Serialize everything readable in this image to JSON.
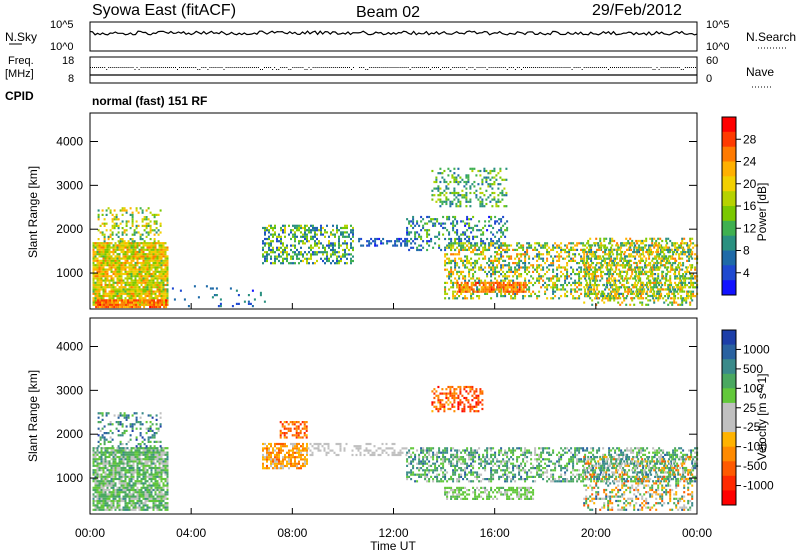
{
  "header": {
    "title": "Syowa East (fitACF)",
    "beam": "Beam 02",
    "date": "29/Feb/2012"
  },
  "strips": {
    "nsky_label": "N.Sky",
    "nsky_ticks": [
      "10^5",
      "10^0"
    ],
    "nsearch_label": "N.Search",
    "nsearch_ticks": [
      "10^5",
      "10^0"
    ],
    "freq_label_1": "Freq.",
    "freq_label_2": "[MHz]",
    "freq_ticks": [
      "18",
      "8"
    ],
    "nave_label": "Nave",
    "nave_ticks": [
      "60",
      "0"
    ],
    "cpid_label": "CPID",
    "cpid_text": "normal (fast) 151 RF"
  },
  "colorbars": {
    "power": {
      "label": "Power [dB]",
      "ticks": [
        "28",
        "24",
        "20",
        "16",
        "12",
        "8",
        "4"
      ],
      "colors": [
        "#ff0000",
        "#ff3a00",
        "#ff7a00",
        "#ffb000",
        "#f2d000",
        "#b6d200",
        "#7ac800",
        "#3fb050",
        "#2a9080",
        "#1e6aa8",
        "#1f49d0",
        "#1212ff"
      ]
    },
    "velocity": {
      "label": "Velocity [m s^-1]",
      "ticks": [
        "1000",
        "500",
        "100",
        "25",
        "-25",
        "-100",
        "-500",
        "-1000"
      ],
      "colors": [
        "#1d3ea8",
        "#2a62a0",
        "#3a8a8a",
        "#4aa860",
        "#62c83a",
        "#c0c0c0",
        "#c0c0c0",
        "#ffb300",
        "#ff8a00",
        "#ff5a00",
        "#ff2a00",
        "#ff0000"
      ]
    }
  },
  "chart_data": [
    {
      "type": "heatmap",
      "name": "power",
      "ylabel": "Slant Range [km]",
      "ylim": [
        180,
        4650
      ],
      "y_ticks": [
        1000,
        2000,
        3000,
        4000
      ],
      "xlim": [
        0,
        24
      ],
      "x_ticks": [
        "00:00",
        "04:00",
        "08:00",
        "12:00",
        "16:00",
        "20:00",
        "00:00"
      ],
      "regions": [
        {
          "t": [
            0.1,
            3.1
          ],
          "r": [
            250,
            1700
          ],
          "dens": 0.9,
          "vals": [
            14,
            26
          ]
        },
        {
          "t": [
            0.3,
            2.8
          ],
          "r": [
            1700,
            2500
          ],
          "dens": 0.3,
          "vals": [
            10,
            24
          ]
        },
        {
          "t": [
            0.2,
            3.0
          ],
          "r": [
            200,
            380
          ],
          "dens": 0.9,
          "vals": [
            22,
            30
          ]
        },
        {
          "t": [
            3.0,
            7.0
          ],
          "r": [
            220,
            700
          ],
          "dens": 0.07,
          "vals": [
            4,
            12
          ]
        },
        {
          "t": [
            6.8,
            10.4
          ],
          "r": [
            1200,
            2100
          ],
          "dens": 0.5,
          "vals": [
            6,
            20
          ]
        },
        {
          "t": [
            10.6,
            12.5
          ],
          "r": [
            1600,
            1800
          ],
          "dens": 0.55,
          "vals": [
            4,
            10
          ]
        },
        {
          "t": [
            12.5,
            16.5
          ],
          "r": [
            1500,
            2300
          ],
          "dens": 0.35,
          "vals": [
            4,
            16
          ]
        },
        {
          "t": [
            13.5,
            16.5
          ],
          "r": [
            2500,
            3400
          ],
          "dens": 0.35,
          "vals": [
            8,
            18
          ]
        },
        {
          "t": [
            14.0,
            24.0
          ],
          "r": [
            400,
            1700
          ],
          "dens": 0.45,
          "vals": [
            8,
            26
          ]
        },
        {
          "t": [
            14.5,
            17.2
          ],
          "r": [
            550,
            800
          ],
          "dens": 0.8,
          "vals": [
            22,
            30
          ]
        },
        {
          "t": [
            19.5,
            23.8
          ],
          "r": [
            250,
            1800
          ],
          "dens": 0.35,
          "vals": [
            10,
            26
          ]
        }
      ]
    },
    {
      "type": "heatmap",
      "name": "velocity",
      "ylabel": "Slant Range [km]",
      "ylim": [
        180,
        4650
      ],
      "y_ticks": [
        1000,
        2000,
        3000,
        4000
      ],
      "xlim": [
        0,
        24
      ],
      "x_ticks": [
        "00:00",
        "04:00",
        "08:00",
        "12:00",
        "16:00",
        "20:00",
        "00:00"
      ],
      "xlabel": "Time UT",
      "regions": [
        {
          "t": [
            0.1,
            3.1
          ],
          "r": [
            250,
            1700
          ],
          "dens": 0.85,
          "vals": [
            25,
            600
          ]
        },
        {
          "t": [
            0.3,
            2.8
          ],
          "r": [
            1700,
            2500
          ],
          "dens": 0.3,
          "vals": [
            100,
            1000
          ]
        },
        {
          "t": [
            6.8,
            8.6
          ],
          "r": [
            1200,
            1800
          ],
          "dens": 0.7,
          "vals": [
            -600,
            -100
          ]
        },
        {
          "t": [
            7.5,
            8.6
          ],
          "r": [
            1900,
            2300
          ],
          "dens": 0.5,
          "vals": [
            -900,
            -300
          ]
        },
        {
          "t": [
            8.6,
            12.5
          ],
          "r": [
            1500,
            1800
          ],
          "dens": 0.4,
          "vals": [
            -25,
            25
          ]
        },
        {
          "t": [
            13.5,
            15.5
          ],
          "r": [
            2500,
            3100
          ],
          "dens": 0.5,
          "vals": [
            -1000,
            -300
          ]
        },
        {
          "t": [
            12.5,
            24.0
          ],
          "r": [
            900,
            1700
          ],
          "dens": 0.5,
          "vals": [
            25,
            800
          ]
        },
        {
          "t": [
            14.0,
            17.5
          ],
          "r": [
            500,
            800
          ],
          "dens": 0.6,
          "vals": [
            100,
            400
          ]
        },
        {
          "t": [
            19.5,
            23.8
          ],
          "r": [
            250,
            1500
          ],
          "dens": 0.4,
          "vals": [
            -700,
            800
          ]
        }
      ]
    }
  ]
}
